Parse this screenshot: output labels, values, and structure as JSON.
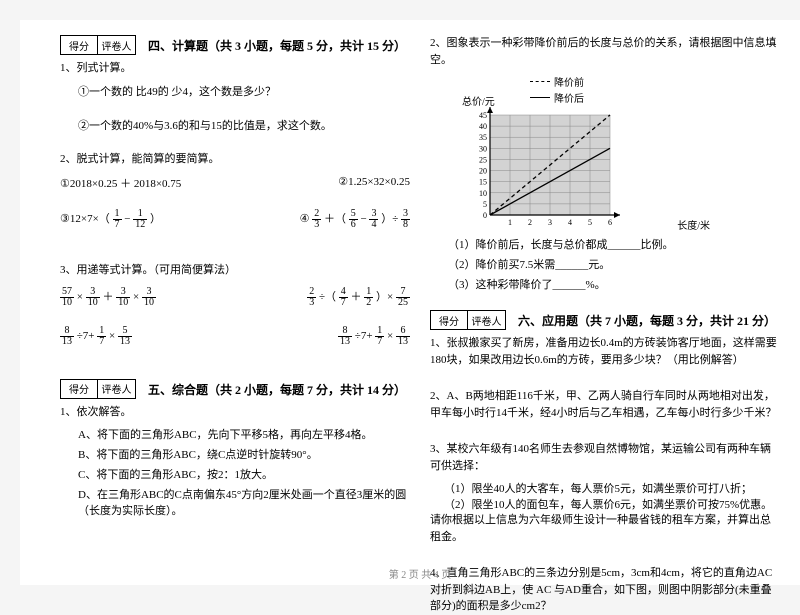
{
  "score_labels": {
    "score": "得分",
    "reviewer": "评卷人"
  },
  "left": {
    "sec4_title": "四、计算题（共 3 小题，每题 5 分，共计 15 分）",
    "q1": "1、列式计算。",
    "q1a": "①一个数的 比49的 少4，这个数是多少？",
    "q1b": "②一个数的40%与3.6的和与15的比值是，求这个数。",
    "q2": "2、脱式计算，能简算的要简算。",
    "q2a": "①2018×0.25 ＋ 2018×0.75",
    "q2b": "②1.25×32×0.25",
    "q2c_pre": "③12×7×（",
    "q2c_f1n": "1",
    "q2c_f1d": "7",
    "q2c_mid": " − ",
    "q2c_f2n": "1",
    "q2c_f2d": "12",
    "q2c_post": "）",
    "q2d_pre": "④",
    "q2d_f1n": "2",
    "q2d_f1d": "3",
    "q2d_mid1": " ＋（",
    "q2d_f2n": "5",
    "q2d_f2d": "6",
    "q2d_mid2": " − ",
    "q2d_f3n": "3",
    "q2d_f3d": "4",
    "q2d_mid3": "）÷",
    "q2d_f4n": "3",
    "q2d_f4d": "8",
    "q3": "3、用递等式计算。（可用简便算法）",
    "q3a_f1n": "57",
    "q3a_f1d": "10",
    "q3a_x1": "×",
    "q3a_f2n": "3",
    "q3a_f2d": "10",
    "q3a_p": "＋",
    "q3a_f3n": "3",
    "q3a_f3d": "10",
    "q3a_x2": "×",
    "q3a_f4n": "3",
    "q3a_f4d": "10",
    "q3b_f1n": "2",
    "q3b_f1d": "3",
    "q3b_d": "÷（",
    "q3b_f2n": "4",
    "q3b_f2d": "7",
    "q3b_p": "＋",
    "q3b_f3n": "1",
    "q3b_f3d": "2",
    "q3b_c": "）×",
    "q3b_f4n": "7",
    "q3b_f4d": "25",
    "q3c_f1n": "8",
    "q3c_f1d": "13",
    "q3c_d": "÷7+",
    "q3c_f2n": "1",
    "q3c_f2d": "7",
    "q3c_x": "×",
    "q3c_f3n": "5",
    "q3c_f3d": "13",
    "q3d_f1n": "8",
    "q3d_f1d": "13",
    "q3d_d": "÷7+",
    "q3d_f2n": "1",
    "q3d_f2d": "7",
    "q3d_x": "×",
    "q3d_f3n": "6",
    "q3d_f3d": "13",
    "sec5_title": "五、综合题（共 2 小题，每题 7 分，共计 14 分）",
    "q5_1": "1、依次解答。",
    "q5a": "A、将下面的三角形ABC，先向下平移5格，再向左平移4格。",
    "q5b": "B、将下面的三角形ABC，绕C点逆时针旋转90°。",
    "q5c": "C、将下面的三角形ABC，按2：1放大。",
    "q5d": "D、在三角形ABC的C点南偏东45°方向2厘米处画一个直径3厘米的圆（长度为实际长度）。"
  },
  "right": {
    "q2": "2、图象表示一种彩带降价前后的长度与总价的关系，请根据图中信息填空。",
    "legend1": "降价前",
    "legend2": "降价后",
    "ylabel": "总价/元",
    "xlabel": "长度/米",
    "chart": {
      "width": 150,
      "height": 110,
      "grid_color": "#888",
      "bg_fill": "#808080",
      "xticks": [
        "1",
        "2",
        "3",
        "4",
        "5",
        "6"
      ],
      "yticks": [
        "0",
        "5",
        "10",
        "15",
        "20",
        "25",
        "30",
        "35",
        "40",
        "45"
      ],
      "line1": {
        "dash": true,
        "points": [
          [
            0,
            0
          ],
          [
            6,
            45
          ]
        ]
      },
      "line2": {
        "dash": false,
        "points": [
          [
            0,
            0
          ],
          [
            6,
            30
          ]
        ]
      }
    },
    "q2_1": "（1）降价前后，长度与总价都成______比例。",
    "q2_2": "（2）降价前买7.5米需______元。",
    "q2_3": "（3）这种彩带降价了______%。",
    "sec6_title": "六、应用题（共 7 小题，每题 3 分，共计 21 分）",
    "q6_1": "1、张叔搬家买了新房，准备用边长0.4m的方砖装饰客厅地面，这样需要180块，如果改用边长0.6m的方砖，要用多少块？（用比例解答）",
    "q6_2": "2、A、B两地相距116千米，甲、乙两人骑自行车同时从两地相对出发，甲车每小时行14千米，经4小时后与乙车相遇，乙车每小时行多少千米？",
    "q6_3": "3、某校六年级有140名师生去参观自然博物馆，某运输公司有两种车辆可供选择：",
    "q6_3a": "（1）限坐40人的大客车，每人票价5元，如满坐票价可打八折；",
    "q6_3b": "（2）限坐10人的面包车，每人票价6元，如满坐票价可按75%优惠。",
    "q6_3c": "请你根据以上信息为六年级师生设计一种最省钱的租车方案，并算出总租金。",
    "q6_4": "4、直角三角形ABC的三条边分别是5cm，3cm和4cm，将它的直角边AC对折到斜边AB上，使 AC 与AD重合，如下图，则图中阴影部分(未重叠部分)的面积是多少cm2？"
  },
  "footer": "第 2 页 共 4 页"
}
